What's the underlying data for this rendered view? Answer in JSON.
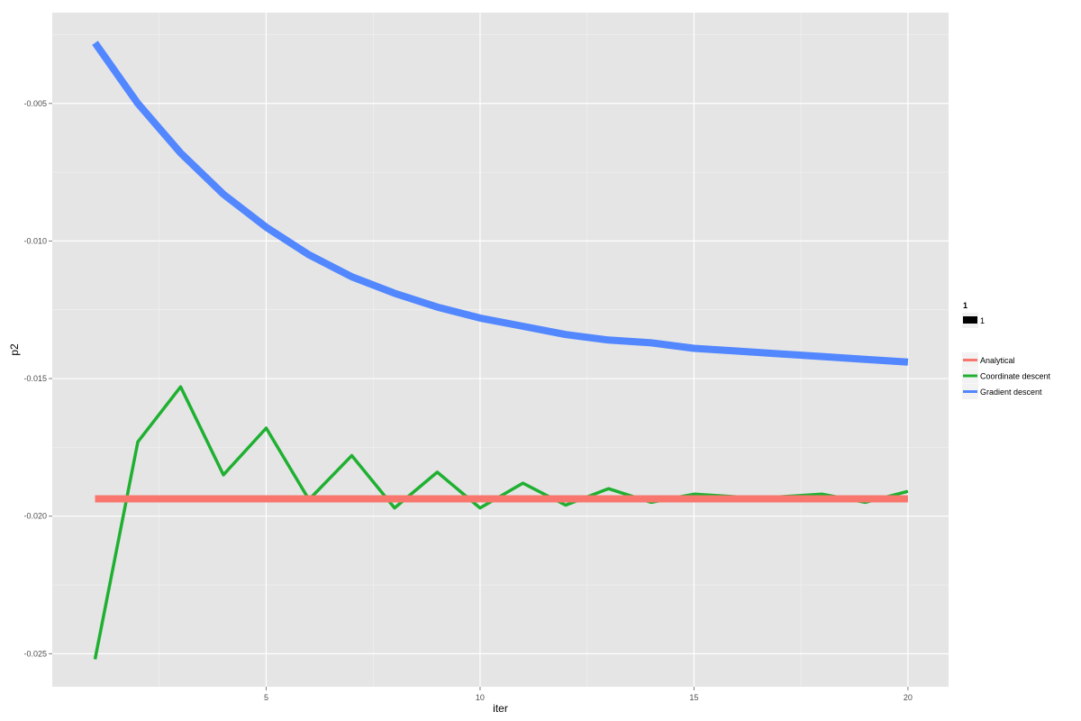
{
  "chart_data": {
    "type": "line",
    "xlabel": "iter",
    "ylabel": "p2",
    "xlim": [
      0.0,
      20.95
    ],
    "ylim": [
      -0.0262,
      -0.0017
    ],
    "x_ticks": [
      5,
      10,
      15,
      20
    ],
    "y_ticks": [
      -0.005,
      -0.01,
      -0.015,
      -0.02,
      -0.025
    ],
    "x_tick_labels": [
      "5",
      "10",
      "15",
      "20"
    ],
    "y_tick_labels": [
      "-0.005",
      "-0.010",
      "-0.015",
      "-0.020",
      "-0.025"
    ],
    "x": [
      1,
      2,
      3,
      4,
      5,
      6,
      7,
      8,
      9,
      10,
      11,
      12,
      13,
      14,
      15,
      16,
      17,
      18,
      19,
      20
    ],
    "series": [
      {
        "name": "Analytical",
        "color": "#F8766D",
        "values": [
          -0.01937,
          -0.01937,
          -0.01937,
          -0.01937,
          -0.01937,
          -0.01937,
          -0.01937,
          -0.01937,
          -0.01937,
          -0.01937,
          -0.01937,
          -0.01937,
          -0.01937,
          -0.01937,
          -0.01937,
          -0.01937,
          -0.01937,
          -0.01937,
          -0.01937,
          -0.01937
        ]
      },
      {
        "name": "Coordinate descent",
        "color": "#1FB031",
        "values": [
          -0.0252,
          -0.0173,
          -0.0153,
          -0.0185,
          -0.0168,
          -0.0194,
          -0.0178,
          -0.0197,
          -0.0184,
          -0.0197,
          -0.0188,
          -0.0196,
          -0.019,
          -0.0195,
          -0.0192,
          -0.0193,
          -0.0193,
          -0.0192,
          -0.0195,
          -0.0191
        ]
      },
      {
        "name": "Gradient descent",
        "color": "#5287FF",
        "values": [
          -0.0028,
          -0.005,
          -0.0068,
          -0.0083,
          -0.0095,
          -0.0105,
          -0.0113,
          -0.0119,
          -0.0124,
          -0.0128,
          -0.0131,
          -0.0134,
          -0.0136,
          -0.0137,
          -0.0139,
          -0.014,
          -0.0141,
          -0.0142,
          -0.0143,
          -0.0144
        ]
      }
    ],
    "size_legend": {
      "title": "1",
      "label": "1"
    },
    "legend_position": "right",
    "grid": true
  }
}
